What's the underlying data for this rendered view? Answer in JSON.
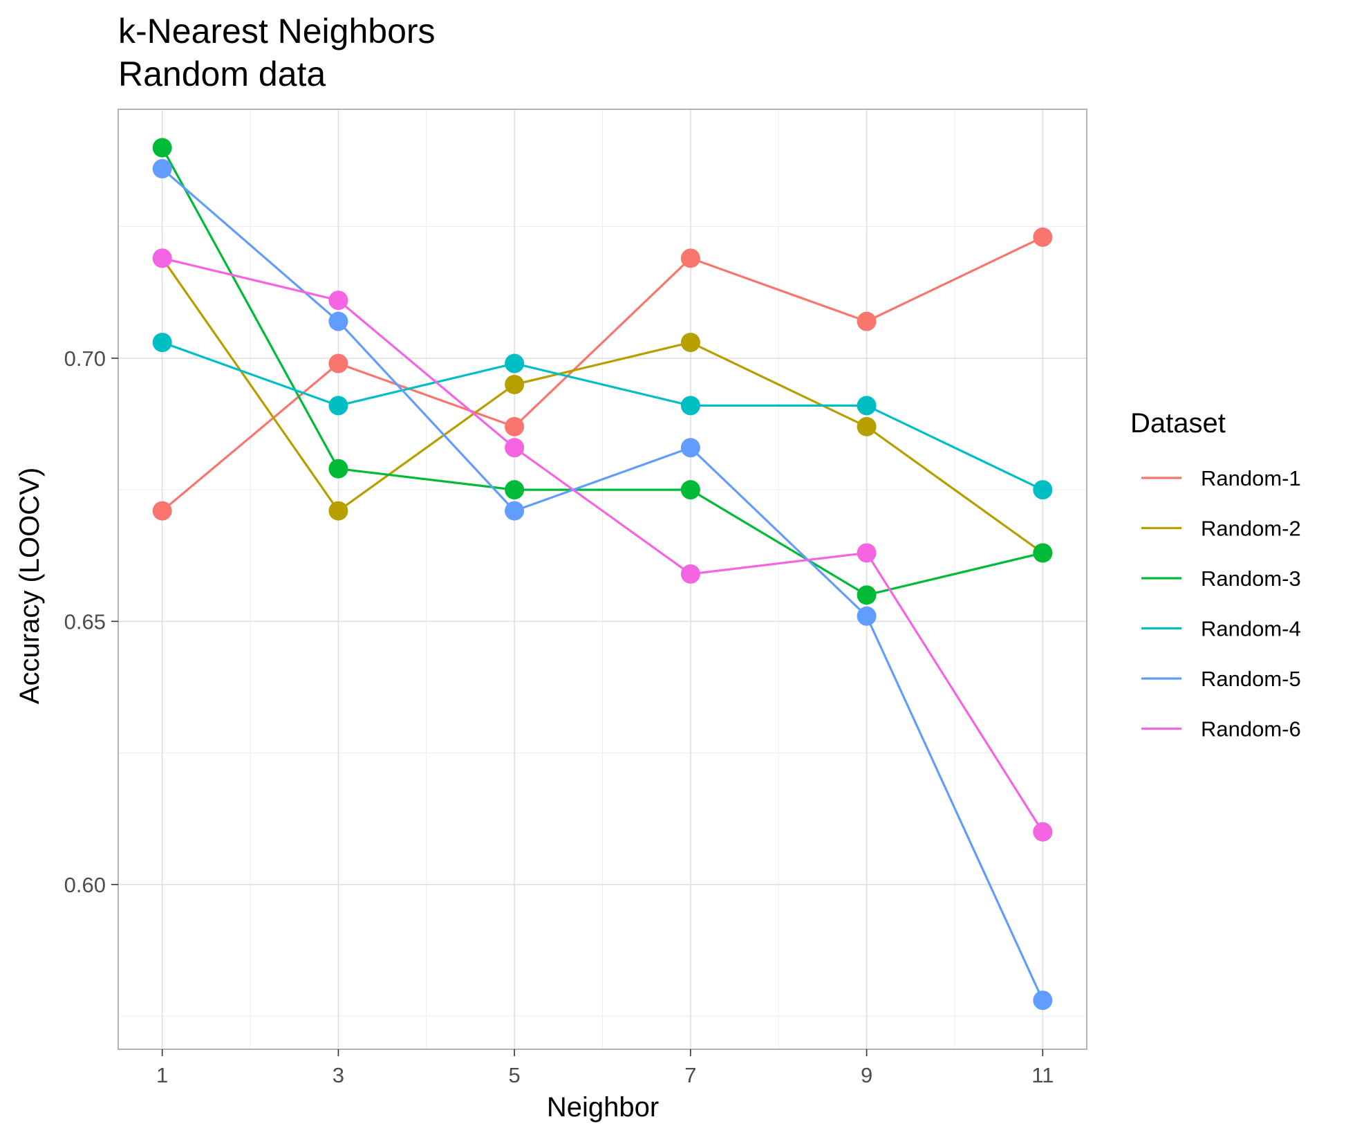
{
  "chart_data": {
    "type": "line",
    "title": "k-Nearest Neighbors",
    "subtitle": "Random data",
    "xlabel": "Neighbor",
    "ylabel": "Accuracy (LOOCV)",
    "x": [
      1,
      3,
      5,
      7,
      9,
      11
    ],
    "x_ticks": [
      "1",
      "3",
      "5",
      "7",
      "9",
      "11"
    ],
    "y_ticks": [
      "0.60",
      "0.65",
      "0.70"
    ],
    "xlim": [
      0.5,
      11.5
    ],
    "ylim": [
      0.5687,
      0.7473
    ],
    "grid": true,
    "legend": {
      "title": "Dataset",
      "position": "right"
    },
    "series": [
      {
        "name": "Random-1",
        "color": "#F8766D",
        "values": [
          0.671,
          0.699,
          0.687,
          0.719,
          0.707,
          0.723
        ]
      },
      {
        "name": "Random-2",
        "color": "#B79F00",
        "values": [
          0.719,
          0.671,
          0.695,
          0.703,
          0.687,
          0.663
        ]
      },
      {
        "name": "Random-3",
        "color": "#00BA38",
        "values": [
          0.74,
          0.679,
          0.675,
          0.675,
          0.655,
          0.663
        ]
      },
      {
        "name": "Random-4",
        "color": "#00BFC4",
        "values": [
          0.703,
          0.691,
          0.699,
          0.691,
          0.691,
          0.675
        ]
      },
      {
        "name": "Random-5",
        "color": "#619CFF",
        "values": [
          0.736,
          0.707,
          0.671,
          0.683,
          0.651,
          0.578
        ]
      },
      {
        "name": "Random-6",
        "color": "#F564E3",
        "values": [
          0.719,
          0.711,
          0.683,
          0.659,
          0.663,
          0.61
        ]
      }
    ]
  }
}
